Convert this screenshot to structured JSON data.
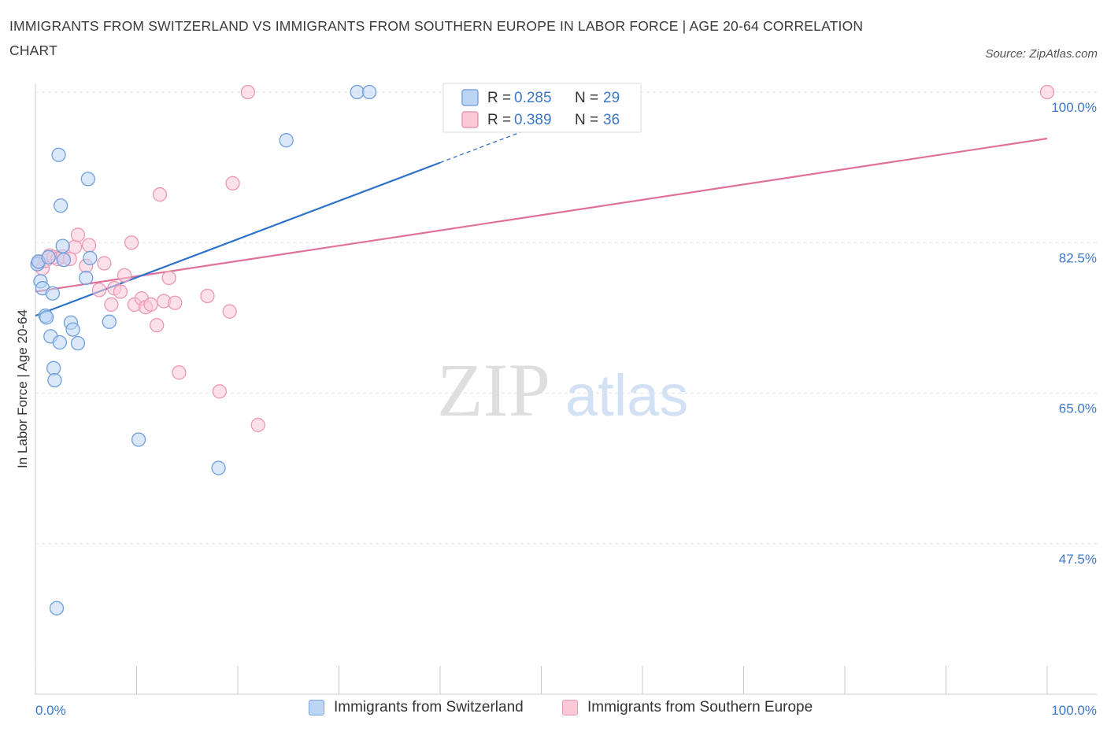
{
  "title": "IMMIGRANTS FROM SWITZERLAND VS IMMIGRANTS FROM SOUTHERN EUROPE IN LABOR FORCE | AGE 20-64 CORRELATION CHART",
  "source": "Source: ZipAtlas.com",
  "watermark": {
    "zip": "ZIP",
    "atlas": "atlas"
  },
  "colors": {
    "blue_fill": "#bcd5f5",
    "blue_stroke": "#6f9fdd",
    "blue_line": "#2f72c9",
    "pink_fill": "#fbc9d8",
    "pink_stroke": "#eb98b3",
    "pink_line": "#e0709a",
    "tick_text": "#3c78c8",
    "grid": "#e3e3e3"
  },
  "legend": {
    "r_label": "R =",
    "n_label": "N =",
    "series1": {
      "r": "0.285",
      "n": "29"
    },
    "series2": {
      "r": "0.389",
      "n": "36"
    }
  },
  "bottom_legend": {
    "series1": "Immigrants from Switzerland",
    "series2": "Immigrants from Southern Europe"
  },
  "chart_data": {
    "type": "scatter",
    "title": "IMMIGRANTS FROM SWITZERLAND VS IMMIGRANTS FROM SOUTHERN EUROPE IN LABOR FORCE | AGE 20-64 CORRELATION CHART",
    "xlabel": "",
    "ylabel": "In Labor Force | Age 20-64",
    "xlim": [
      0,
      100
    ],
    "ylim": [
      30,
      100
    ],
    "x_tick_labels": [
      "0.0%",
      "100.0%"
    ],
    "y_ticks": [
      47.5,
      65.0,
      82.5,
      100.0
    ],
    "y_tick_labels": [
      "47.5%",
      "65.0%",
      "82.5%",
      "100.0%"
    ],
    "series": [
      {
        "name": "Immigrants from Switzerland",
        "r": 0.285,
        "n": 29,
        "points": [
          [
            0.2,
            80.0
          ],
          [
            0.3,
            80.3
          ],
          [
            0.5,
            78.0
          ],
          [
            0.7,
            77.2
          ],
          [
            1.0,
            74.0
          ],
          [
            1.1,
            73.8
          ],
          [
            1.3,
            80.8
          ],
          [
            1.5,
            71.6
          ],
          [
            1.7,
            76.6
          ],
          [
            1.8,
            67.9
          ],
          [
            1.9,
            66.5
          ],
          [
            2.1,
            40.0
          ],
          [
            2.3,
            92.7
          ],
          [
            2.4,
            70.9
          ],
          [
            2.5,
            86.8
          ],
          [
            2.7,
            82.1
          ],
          [
            2.8,
            80.5
          ],
          [
            3.5,
            73.2
          ],
          [
            3.7,
            72.4
          ],
          [
            4.2,
            70.8
          ],
          [
            5.0,
            78.4
          ],
          [
            5.2,
            89.9
          ],
          [
            5.4,
            80.7
          ],
          [
            7.3,
            73.3
          ],
          [
            10.2,
            59.6
          ],
          [
            18.1,
            56.3
          ],
          [
            24.8,
            94.4
          ],
          [
            31.8,
            100.0
          ],
          [
            33.0,
            100.0
          ]
        ],
        "trend": {
          "x0": 0,
          "y0": 74.0,
          "x1": 40,
          "y1": 91.8,
          "dashed_to_x": 51,
          "dashed_to_y": 96.7
        }
      },
      {
        "name": "Immigrants from Southern Europe",
        "r": 0.389,
        "n": 36,
        "points": [
          [
            0.4,
            80.2
          ],
          [
            0.7,
            79.5
          ],
          [
            1.0,
            80.4
          ],
          [
            1.4,
            81.0
          ],
          [
            1.8,
            80.8
          ],
          [
            2.2,
            80.6
          ],
          [
            2.7,
            80.9
          ],
          [
            3.4,
            80.6
          ],
          [
            3.9,
            82.0
          ],
          [
            4.2,
            83.4
          ],
          [
            5.0,
            79.8
          ],
          [
            5.3,
            82.2
          ],
          [
            6.3,
            77.0
          ],
          [
            6.8,
            80.1
          ],
          [
            7.5,
            75.3
          ],
          [
            7.8,
            77.2
          ],
          [
            8.4,
            76.8
          ],
          [
            8.8,
            78.7
          ],
          [
            9.5,
            82.5
          ],
          [
            9.8,
            75.3
          ],
          [
            10.5,
            76.0
          ],
          [
            10.9,
            75.0
          ],
          [
            11.4,
            75.3
          ],
          [
            12.0,
            72.9
          ],
          [
            12.3,
            88.1
          ],
          [
            12.7,
            75.7
          ],
          [
            13.2,
            78.4
          ],
          [
            13.8,
            75.5
          ],
          [
            14.2,
            67.4
          ],
          [
            17.0,
            76.3
          ],
          [
            18.2,
            65.2
          ],
          [
            19.2,
            74.5
          ],
          [
            19.5,
            89.4
          ],
          [
            21.0,
            100.0
          ],
          [
            22.0,
            61.3
          ],
          [
            100.0,
            100.0
          ]
        ],
        "trend": {
          "x0": 0,
          "y0": 76.8,
          "x1": 100,
          "y1": 94.6
        }
      }
    ]
  }
}
